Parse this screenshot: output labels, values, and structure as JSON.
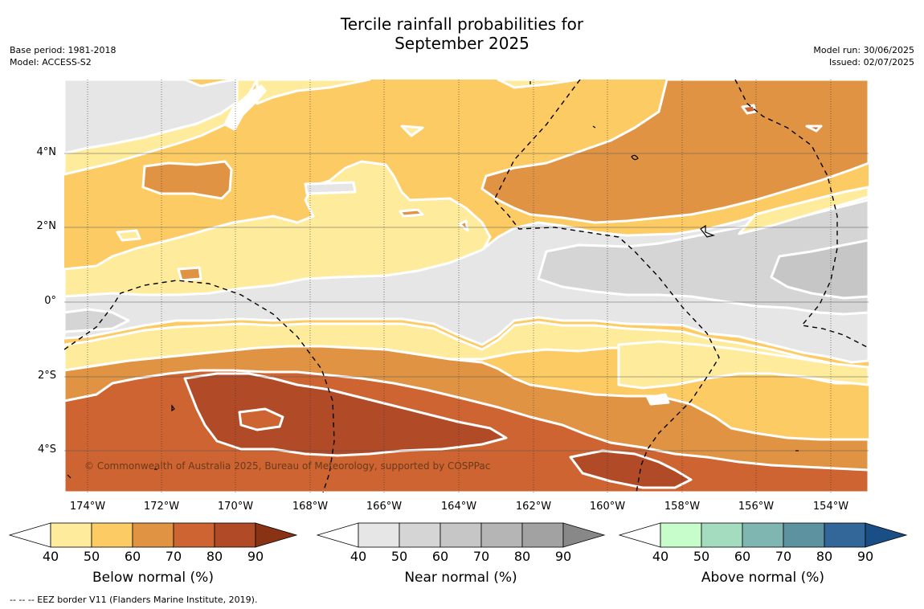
{
  "title": {
    "line1": "Tercile rainfall probabilities for",
    "line2": "September 2025"
  },
  "meta_left": {
    "base_period": "Base period: 1981-2018",
    "model": "Model: ACCESS-S2"
  },
  "meta_right": {
    "model_run": "Model run: 30/06/2025",
    "issued": "Issued: 02/07/2025"
  },
  "map": {
    "lat_labels": [
      "4°N",
      "2°N",
      "0°",
      "2°S",
      "4°S"
    ],
    "lon_labels": [
      "174°W",
      "172°W",
      "170°W",
      "168°W",
      "166°W",
      "164°W",
      "162°W",
      "160°W",
      "158°W",
      "156°W",
      "154°W"
    ],
    "credit": "© Commonwealth of Australia 2025, Bureau of Meteorology, supported by COSPPac",
    "colors": {
      "below": [
        "#ffffff",
        "#ffeb9c",
        "#fdcb63",
        "#e09443",
        "#cd6431",
        "#b04a27",
        "#8a3214"
      ],
      "near": [
        "#ffffff",
        "#e6e6e6",
        "#d5d5d5",
        "#c6c6c6",
        "#b5b5b5",
        "#a2a2a2",
        "#888888"
      ],
      "above": [
        "#ffffff",
        "#c7fccb",
        "#a4dcc0",
        "#80b6b1",
        "#5d93a1",
        "#336699",
        "#1a4f86"
      ]
    }
  },
  "colorbars": [
    {
      "label": "Below normal (%)",
      "ticks": [
        "40",
        "50",
        "60",
        "70",
        "80",
        "90"
      ]
    },
    {
      "label": "Near normal (%)",
      "ticks": [
        "40",
        "50",
        "60",
        "70",
        "80",
        "90"
      ]
    },
    {
      "label": "Above normal (%)",
      "ticks": [
        "40",
        "50",
        "60",
        "70",
        "80",
        "90"
      ]
    }
  ],
  "footer": "--  --  -- EEZ border V11 (Flanders Marine Institute, 2019)."
}
